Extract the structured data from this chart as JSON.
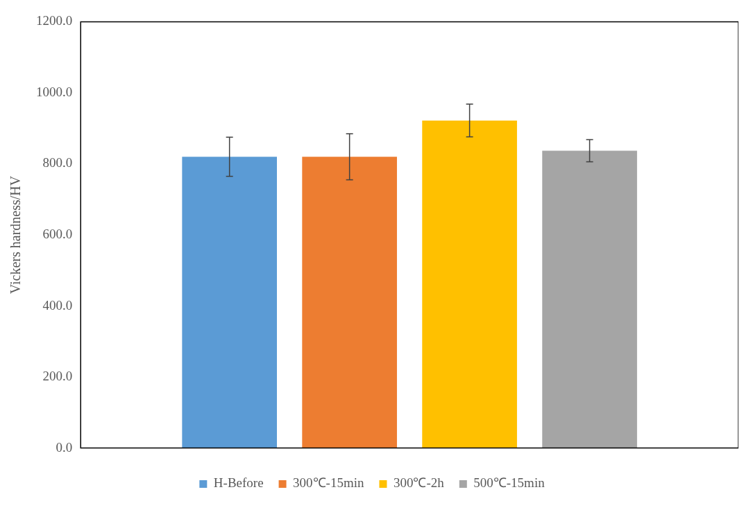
{
  "chart_data": {
    "type": "bar",
    "ylabel": "Vickers hardness/HV",
    "categories": [
      null
    ],
    "series": [
      {
        "name": "H-Before",
        "color": "#5b9bd5",
        "values": [
          820
        ],
        "errors": [
          55
        ]
      },
      {
        "name": "300℃-15min",
        "color": "#ed7d31",
        "values": [
          820
        ],
        "errors": [
          65
        ]
      },
      {
        "name": "300℃-2h",
        "color": "#ffc000",
        "values": [
          922
        ],
        "errors": [
          46
        ]
      },
      {
        "name": "500℃-15min",
        "color": "#a5a5a5",
        "values": [
          837
        ],
        "errors": [
          31
        ]
      }
    ],
    "ylim": [
      0,
      1200
    ],
    "yticks": [
      {
        "value": 0,
        "label": "0.0"
      },
      {
        "value": 200,
        "label": "200.0"
      },
      {
        "value": 400,
        "label": "400.0"
      },
      {
        "value": 600,
        "label": "600.0"
      },
      {
        "value": 800,
        "label": "800.0"
      },
      {
        "value": 1000,
        "label": "1000.0"
      },
      {
        "value": 1200,
        "label": "1200.0"
      }
    ],
    "grid": false,
    "legend": "bottom"
  }
}
